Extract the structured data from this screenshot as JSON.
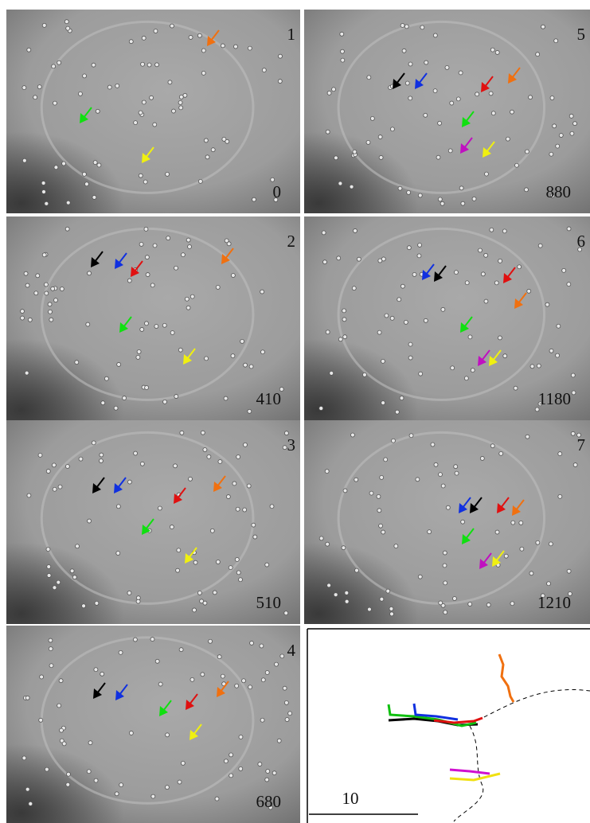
{
  "panels": [
    {
      "label": "1",
      "time": "0"
    },
    {
      "label": "5",
      "time": "880"
    },
    {
      "label": "2",
      "time": "410"
    },
    {
      "label": "6",
      "time": "1180"
    },
    {
      "label": "3",
      "time": "510"
    },
    {
      "label": "7",
      "time": "1210"
    },
    {
      "label": "4",
      "time": "680"
    }
  ],
  "scale_bar": {
    "label": "10"
  }
}
